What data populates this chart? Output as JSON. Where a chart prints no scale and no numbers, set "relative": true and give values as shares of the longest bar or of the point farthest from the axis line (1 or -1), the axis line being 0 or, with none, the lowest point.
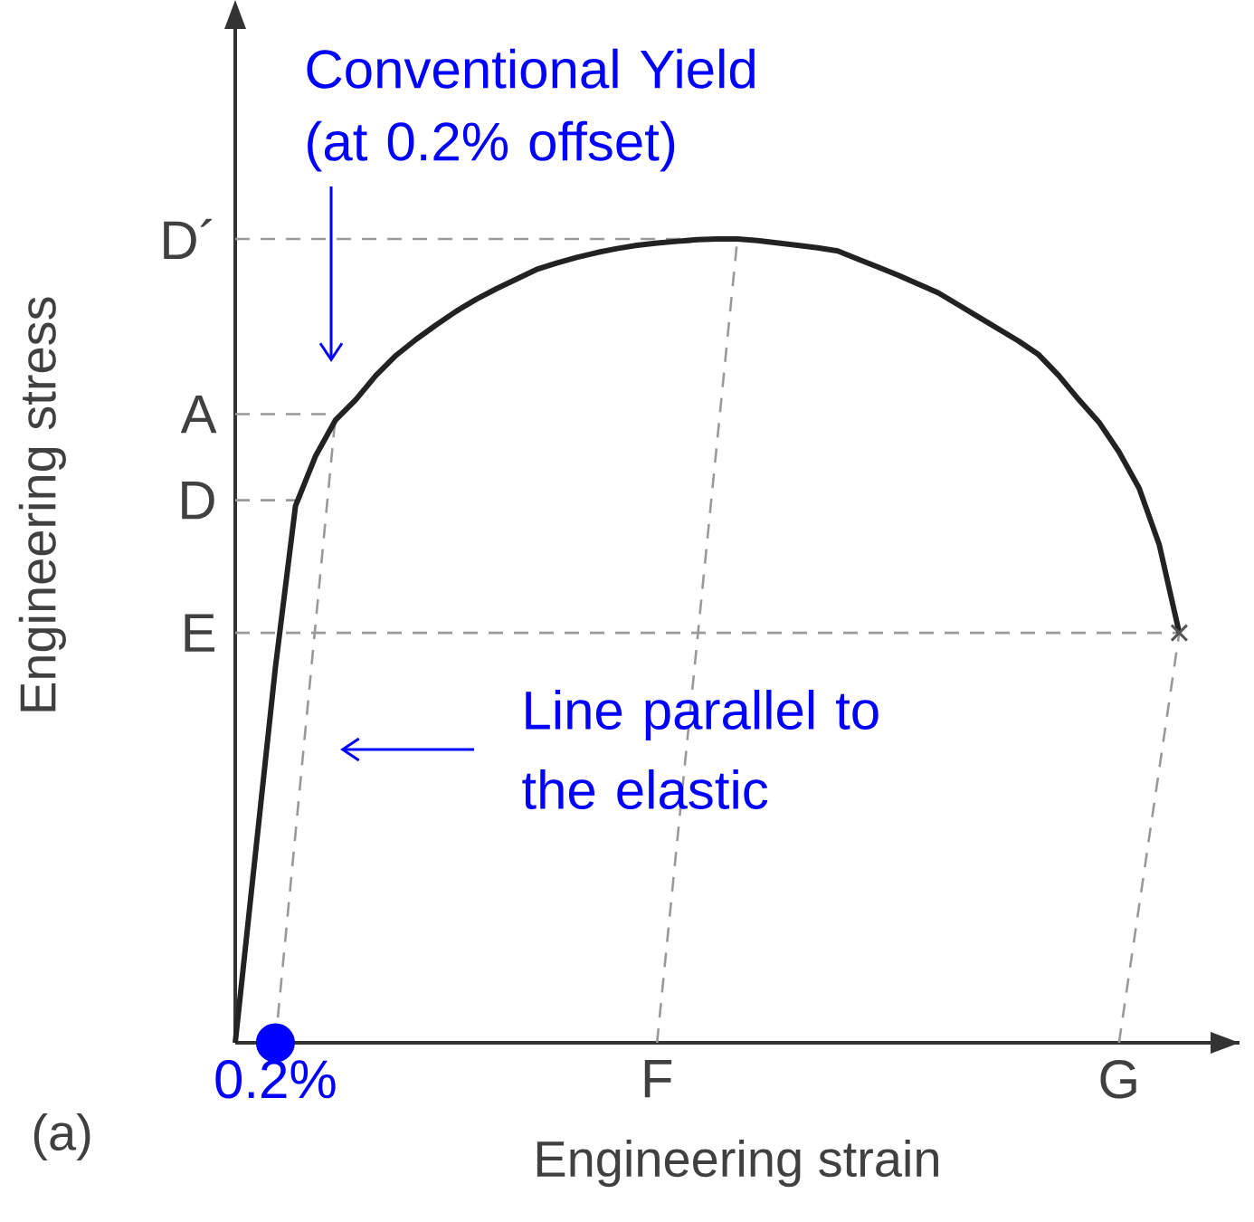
{
  "chart_data": {
    "type": "line",
    "relative": true,
    "xlabel": "Engineering strain",
    "ylabel": "Engineering stress",
    "grid": false,
    "categories": [
      null,
      null,
      "0.2%",
      null,
      null,
      null,
      null,
      null,
      null,
      null,
      null,
      null,
      null,
      null,
      null,
      null,
      null,
      null,
      null,
      null,
      null,
      "F",
      null,
      null,
      null,
      null,
      null,
      null,
      null,
      null,
      null,
      null,
      null,
      null,
      null,
      null,
      null,
      null,
      null,
      null,
      null,
      null,
      null,
      null,
      "G",
      null,
      null,
      null
    ],
    "series": [
      {
        "name": "D´",
        "color": "#999999",
        "line_style": "dashed",
        "values": [
          1,
          null,
          null,
          null,
          null,
          null,
          null,
          null,
          null,
          null,
          null,
          null,
          null,
          null,
          null,
          null,
          null,
          null,
          null,
          null,
          null,
          null,
          null,
          null,
          1,
          null,
          null,
          null,
          null,
          null,
          null,
          null,
          null,
          null,
          null,
          null,
          null,
          null,
          null,
          null,
          null,
          null,
          null,
          null,
          null,
          null,
          null,
          null
        ]
      },
      {
        "name": "A",
        "color": "#999999",
        "line_style": "dashed",
        "values": [
          0.782,
          null,
          null,
          null,
          null,
          0.782,
          null,
          null,
          null,
          null,
          null,
          null,
          null,
          null,
          null,
          null,
          null,
          null,
          null,
          null,
          null,
          null,
          null,
          null,
          null,
          null,
          null,
          null,
          null,
          null,
          null,
          null,
          null,
          null,
          null,
          null,
          null,
          null,
          null,
          null,
          null,
          null,
          null,
          null,
          null,
          null,
          null,
          null
        ]
      },
      {
        "name": "D",
        "color": "#999999",
        "line_style": "dashed",
        "values": [
          0.675,
          null,
          null,
          0.675,
          null,
          null,
          null,
          null,
          null,
          null,
          null,
          null,
          null,
          null,
          null,
          null,
          null,
          null,
          null,
          null,
          null,
          null,
          null,
          null,
          null,
          null,
          null,
          null,
          null,
          null,
          null,
          null,
          null,
          null,
          null,
          null,
          null,
          null,
          null,
          null,
          null,
          null,
          null,
          null,
          null,
          null,
          null,
          null
        ]
      },
      {
        "name": "E",
        "color": "#999999",
        "line_style": "dashed",
        "values": [
          0.51,
          null,
          null,
          null,
          null,
          null,
          null,
          null,
          null,
          null,
          null,
          null,
          null,
          null,
          null,
          null,
          null,
          null,
          null,
          null,
          null,
          null,
          null,
          null,
          null,
          null,
          null,
          null,
          null,
          null,
          null,
          null,
          null,
          null,
          null,
          null,
          null,
          null,
          null,
          null,
          null,
          null,
          null,
          null,
          null,
          null,
          null,
          0.51
        ]
      },
      {
        "color": "#999999",
        "line_style": "dashed",
        "values": [
          null,
          null,
          0,
          null,
          null,
          0.782,
          null,
          null,
          null,
          null,
          null,
          null,
          null,
          null,
          null,
          null,
          null,
          null,
          null,
          null,
          null,
          null,
          null,
          null,
          null,
          null,
          null,
          null,
          null,
          null,
          null,
          null,
          null,
          null,
          null,
          null,
          null,
          null,
          null,
          null,
          null,
          null,
          null,
          null,
          null,
          null,
          null,
          null
        ]
      },
      {
        "color": "#999999",
        "line_style": "dashed",
        "values": [
          null,
          null,
          null,
          null,
          null,
          null,
          null,
          null,
          null,
          null,
          null,
          null,
          null,
          null,
          null,
          null,
          null,
          null,
          null,
          null,
          null,
          0,
          null,
          null,
          null,
          1,
          null,
          null,
          null,
          null,
          null,
          null,
          null,
          null,
          null,
          null,
          null,
          null,
          null,
          null,
          null,
          null,
          null,
          null,
          null,
          null,
          null,
          null
        ]
      },
      {
        "color": "#999999",
        "line_style": "dashed",
        "values": [
          null,
          null,
          null,
          null,
          null,
          null,
          null,
          null,
          null,
          null,
          null,
          null,
          null,
          null,
          null,
          null,
          null,
          null,
          null,
          null,
          null,
          null,
          null,
          null,
          null,
          null,
          null,
          null,
          null,
          null,
          null,
          null,
          null,
          null,
          null,
          null,
          null,
          null,
          null,
          null,
          null,
          null,
          null,
          null,
          0,
          null,
          null,
          0.51
        ]
      },
      {
        "color": "#222222",
        "line_style": "solid",
        "values": [
          0,
          0.234,
          0.467,
          0.668,
          0.73,
          0.775,
          0.8,
          0.83,
          0.855,
          0.875,
          0.893,
          0.91,
          0.925,
          0.938,
          0.95,
          0.962,
          0.97,
          0.977,
          0.983,
          0.988,
          0.992,
          0.995,
          0.997,
          0.999,
          1.0,
          1.0,
          0.998,
          0.995,
          0.992,
          0.989,
          0.985,
          0.975,
          0.965,
          0.955,
          0.944,
          0.933,
          0.918,
          0.903,
          0.888,
          0.873,
          0.856,
          0.83,
          0.8,
          0.772,
          0.735,
          0.69,
          0.62,
          0.51
        ]
      },
      {
        "type": "scatter",
        "color": "#555555",
        "marker": "cross",
        "values": [
          null,
          null,
          null,
          null,
          null,
          null,
          null,
          null,
          null,
          null,
          null,
          null,
          null,
          null,
          null,
          null,
          null,
          null,
          null,
          null,
          null,
          null,
          null,
          null,
          null,
          null,
          null,
          null,
          null,
          null,
          null,
          null,
          null,
          null,
          null,
          null,
          null,
          null,
          null,
          null,
          null,
          null,
          null,
          null,
          null,
          null,
          null,
          0.51
        ]
      },
      {
        "type": "scatter",
        "color": "#0000ff",
        "marker": "circle",
        "values": [
          null,
          null,
          0,
          null,
          null,
          null,
          null,
          null,
          null,
          null,
          null,
          null,
          null,
          null,
          null,
          null,
          null,
          null,
          null,
          null,
          null,
          null,
          null,
          null,
          null,
          null,
          null,
          null,
          null,
          null,
          null,
          null,
          null,
          null,
          null,
          null,
          null,
          null,
          null,
          null,
          null,
          null,
          null,
          null,
          null,
          null,
          null,
          null
        ]
      }
    ],
    "annotations": [
      "Conventional Yield (at 0.2% offset)",
      "Line parallel to the elastic",
      "(a)"
    ]
  }
}
